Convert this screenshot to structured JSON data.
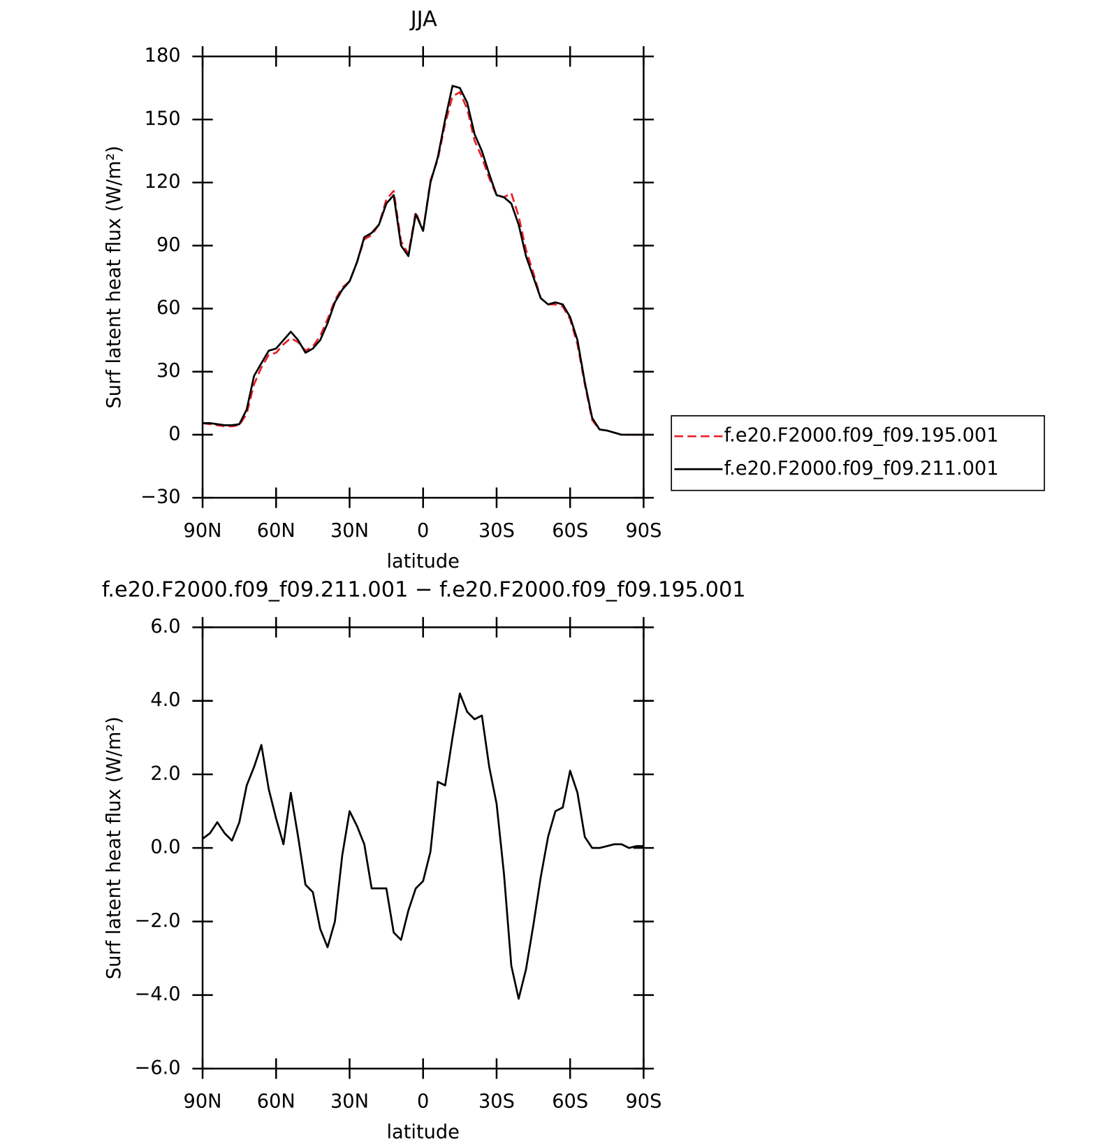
{
  "chart_data": [
    {
      "type": "line",
      "title": "JJA",
      "xlabel": "latitude",
      "ylabel": "Surf latent heat flux (W/m²)",
      "x": [
        90,
        87,
        84,
        81,
        78,
        75,
        72,
        69,
        66,
        63,
        60,
        57,
        54,
        51,
        48,
        45,
        42,
        39,
        36,
        33,
        30,
        27,
        24,
        21,
        18,
        15,
        12,
        9,
        6,
        3,
        0,
        -3,
        -6,
        -9,
        -12,
        -15,
        -18,
        -21,
        -24,
        -27,
        -30,
        -33,
        -36,
        -39,
        -42,
        -45,
        -48,
        -51,
        -54,
        -57,
        -60,
        -63,
        -66,
        -69,
        -72,
        -75,
        -78,
        -81,
        -84,
        -87,
        -90
      ],
      "series": [
        {
          "name": "f.e20.F2000.f09_f09.195.001",
          "color": "#e8202a",
          "linestyle": "dashed",
          "values": [
            5.5,
            5,
            4.5,
            4,
            4,
            4.5,
            10,
            24,
            32,
            38,
            39,
            43,
            46,
            44,
            40,
            42,
            47,
            55,
            64,
            70,
            73,
            82,
            93,
            95,
            100,
            112,
            116,
            92,
            86,
            106,
            97,
            121,
            131,
            148,
            161,
            163,
            155,
            140,
            132,
            122,
            114,
            113,
            115,
            104,
            88,
            77,
            65,
            62,
            62,
            61,
            55,
            43,
            24,
            7,
            2.5,
            2,
            1,
            0,
            0,
            0,
            0
          ]
        },
        {
          "name": "f.e20.F2000.f09_f09.211.001",
          "color": "#000000",
          "linestyle": "solid",
          "values": [
            5.5,
            5.5,
            5,
            4.5,
            4.5,
            5,
            12,
            28,
            34,
            40,
            41,
            45,
            49,
            45,
            39,
            41,
            45,
            53,
            63,
            69,
            73,
            82,
            94,
            96,
            100,
            110,
            114,
            90,
            85,
            105,
            97,
            120,
            132,
            150,
            166,
            165,
            158,
            143,
            135,
            124,
            114,
            113,
            110,
            100,
            85,
            75,
            65,
            62,
            63,
            62,
            56,
            45,
            25,
            8,
            2.5,
            2,
            1,
            0,
            0,
            0,
            0
          ]
        }
      ],
      "xlim": [
        90,
        -90
      ],
      "xticks": [
        {
          "value": 90,
          "label": "90N"
        },
        {
          "value": 60,
          "label": "60N"
        },
        {
          "value": 30,
          "label": "30N"
        },
        0,
        {
          "value": -30,
          "label": "30S"
        },
        {
          "value": -60,
          "label": "60S"
        },
        {
          "value": -90,
          "label": "90S"
        }
      ],
      "ylim": [
        -30,
        180
      ],
      "yticks": [
        {
          "value": -30,
          "label": "−30"
        },
        0,
        30,
        60,
        90,
        120,
        150,
        180
      ],
      "legend": "right"
    },
    {
      "type": "line",
      "title": "f.e20.F2000.f09_f09.211.001 − f.e20.F2000.f09_f09.195.001",
      "xlabel": "latitude",
      "ylabel": "Surf latent heat flux (W/m²)",
      "x": [
        90,
        87,
        84,
        81,
        78,
        75,
        72,
        69,
        66,
        63,
        60,
        57,
        54,
        51,
        48,
        45,
        42,
        39,
        36,
        33,
        30,
        27,
        24,
        21,
        18,
        15,
        12,
        9,
        6,
        3,
        0,
        -3,
        -6,
        -9,
        -12,
        -15,
        -18,
        -21,
        -24,
        -27,
        -30,
        -33,
        -36,
        -39,
        -42,
        -45,
        -48,
        -51,
        -54,
        -57,
        -60,
        -63,
        -66,
        -69,
        -72,
        -75,
        -78,
        -81,
        -84,
        -87,
        -90
      ],
      "values": [
        0.25,
        0.4,
        0.7,
        0.4,
        0.2,
        0.7,
        1.7,
        2.2,
        2.8,
        1.6,
        0.8,
        0.1,
        1.5,
        0.3,
        -1.0,
        -1.2,
        -2.2,
        -2.7,
        -2.0,
        -0.2,
        1.0,
        0.6,
        0.1,
        -1.1,
        -1.1,
        -1.1,
        -2.3,
        -2.5,
        -1.7,
        -1.1,
        -0.9,
        -0.1,
        1.8,
        1.7,
        3.0,
        4.2,
        3.7,
        3.5,
        3.6,
        2.2,
        1.2,
        -0.7,
        -3.2,
        -4.1,
        -3.3,
        -2.1,
        -0.8,
        0.3,
        1.0,
        1.1,
        2.1,
        1.5,
        0.3,
        0,
        0,
        0.05,
        0.1,
        0.1,
        0,
        0.05,
        0.05
      ],
      "color": "#000000",
      "xlim": [
        90,
        -90
      ],
      "xticks": [
        {
          "value": 90,
          "label": "90N"
        },
        {
          "value": 60,
          "label": "60N"
        },
        {
          "value": 30,
          "label": "30N"
        },
        0,
        {
          "value": -30,
          "label": "30S"
        },
        {
          "value": -60,
          "label": "60S"
        },
        {
          "value": -90,
          "label": "90S"
        }
      ],
      "ylim": [
        -6,
        6
      ],
      "yticks": [
        {
          "value": -6,
          "label": "−6.0"
        },
        {
          "value": -4,
          "label": "−4.0"
        },
        {
          "value": -2,
          "label": "−2.0"
        },
        {
          "value": 0,
          "label": "0.0"
        },
        {
          "value": 2,
          "label": "2.0"
        },
        {
          "value": 4,
          "label": "4.0"
        },
        {
          "value": 6,
          "label": "6.0"
        }
      ]
    }
  ]
}
